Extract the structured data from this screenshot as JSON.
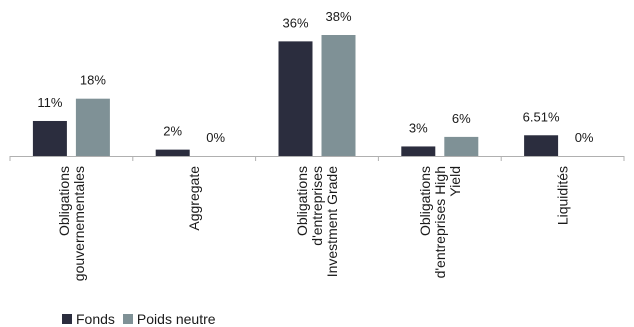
{
  "chart_data": {
    "type": "bar",
    "categories": [
      [
        "Obligations",
        "gouvernementales"
      ],
      [
        "Aggregate"
      ],
      [
        "Obligations",
        "d'entreprises",
        "Investment Grade"
      ],
      [
        "Obligations",
        "d'entreprises High",
        "Yield"
      ],
      [
        "Liquidités"
      ]
    ],
    "series": [
      {
        "name": "Fonds",
        "values": [
          11,
          2,
          36,
          3,
          6.51
        ],
        "labels": [
          "11%",
          "2%",
          "36%",
          "3%",
          "6.51%"
        ],
        "color": "#2b2d3e"
      },
      {
        "name": "Poids neutre",
        "values": [
          18,
          0,
          38,
          6,
          0
        ],
        "labels": [
          "18%",
          "0%",
          "38%",
          "6%",
          "0%"
        ],
        "color": "#7f9196"
      }
    ],
    "ylim": [
      0,
      38
    ],
    "legend_position": "bottom-left",
    "grid": false
  }
}
